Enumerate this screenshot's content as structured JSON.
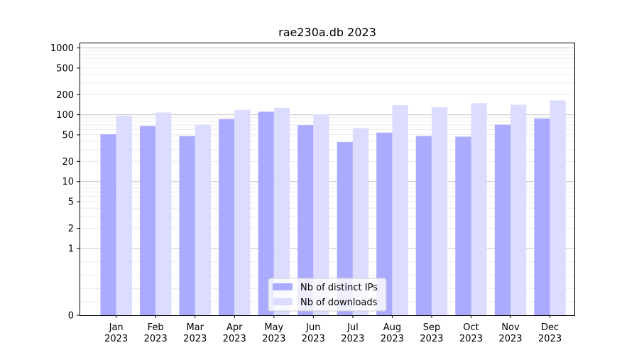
{
  "chart_data": {
    "type": "bar",
    "title": "rae230a.db 2023",
    "categories": [
      [
        "Jan",
        "2023"
      ],
      [
        "Feb",
        "2023"
      ],
      [
        "Mar",
        "2023"
      ],
      [
        "Apr",
        "2023"
      ],
      [
        "May",
        "2023"
      ],
      [
        "Jun",
        "2023"
      ],
      [
        "Jul",
        "2023"
      ],
      [
        "Aug",
        "2023"
      ],
      [
        "Sep",
        "2023"
      ],
      [
        "Oct",
        "2023"
      ],
      [
        "Nov",
        "2023"
      ],
      [
        "Dec",
        "2023"
      ]
    ],
    "series": [
      {
        "name": "Nb of distinct IPs",
        "color": "#aaaaff",
        "values": [
          51,
          68,
          48,
          86,
          111,
          70,
          39,
          54,
          48,
          47,
          71,
          88
        ]
      },
      {
        "name": "Nb of downloads",
        "color": "#dcdcff",
        "values": [
          97,
          108,
          71,
          118,
          127,
          101,
          63,
          139,
          129,
          149,
          141,
          164
        ]
      }
    ],
    "yscale": "symlog",
    "ylim": [
      0,
      1200
    ],
    "yticks": [
      0,
      1,
      2,
      5,
      10,
      20,
      50,
      100,
      200,
      500,
      1000
    ],
    "xlabel": "",
    "ylabel": "",
    "grid": true,
    "legend_position": "lower-center"
  }
}
